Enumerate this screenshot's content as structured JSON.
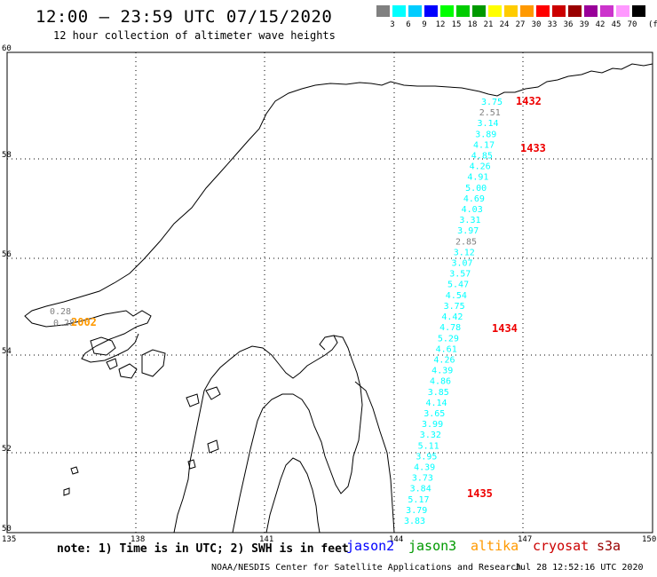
{
  "header": {
    "title": "12:00 – 23:59 UTC 07/15/2020",
    "subtitle": "12 hour collection of altimeter wave heights"
  },
  "scale": {
    "colors": [
      "#808080",
      "#00ffff",
      "#00ccff",
      "#0000ff",
      "#00ff00",
      "#00cc00",
      "#009900",
      "#ffff00",
      "#ffcc00",
      "#ff9900",
      "#ff0000",
      "#cc0000",
      "#990000",
      "#990099",
      "#cc33cc",
      "#ff99ff",
      "#000000"
    ],
    "labels": [
      "3",
      "6",
      "9",
      "12",
      "15",
      "18",
      "21",
      "24",
      "27",
      "30",
      "33",
      "36",
      "39",
      "42",
      "45",
      "70"
    ],
    "unit": "(ft)"
  },
  "axes": {
    "x_ticks": [
      "135",
      "138",
      "141",
      "144",
      "147",
      "150"
    ],
    "y_ticks": [
      "60",
      "58",
      "56",
      "54",
      "52",
      "50"
    ]
  },
  "swh_colors": {
    "cyan": "#00ffff",
    "gray": "#808080"
  },
  "swh_track": [
    {
      "v": "3.75",
      "c": "cyan"
    },
    {
      "v": "2.51",
      "c": "gray"
    },
    {
      "v": "3.14",
      "c": "cyan"
    },
    {
      "v": "3.89",
      "c": "cyan"
    },
    {
      "v": "4.17",
      "c": "cyan"
    },
    {
      "v": "4.85",
      "c": "cyan"
    },
    {
      "v": "4.26",
      "c": "cyan"
    },
    {
      "v": "4.91",
      "c": "cyan"
    },
    {
      "v": "5.00",
      "c": "cyan"
    },
    {
      "v": "4.69",
      "c": "cyan"
    },
    {
      "v": "4.03",
      "c": "cyan"
    },
    {
      "v": "3.31",
      "c": "cyan"
    },
    {
      "v": "3.97",
      "c": "cyan"
    },
    {
      "v": "2.85",
      "c": "gray"
    },
    {
      "v": "3.12",
      "c": "cyan"
    },
    {
      "v": "3.07",
      "c": "cyan"
    },
    {
      "v": "3.57",
      "c": "cyan"
    },
    {
      "v": "5.47",
      "c": "cyan"
    },
    {
      "v": "4.54",
      "c": "cyan"
    },
    {
      "v": "3.75",
      "c": "cyan"
    },
    {
      "v": "4.42",
      "c": "cyan"
    },
    {
      "v": "4.78",
      "c": "cyan"
    },
    {
      "v": "5.29",
      "c": "cyan"
    },
    {
      "v": "4.61",
      "c": "cyan"
    },
    {
      "v": "4.26",
      "c": "cyan"
    },
    {
      "v": "4.39",
      "c": "cyan"
    },
    {
      "v": "4.86",
      "c": "cyan"
    },
    {
      "v": "3.85",
      "c": "cyan"
    },
    {
      "v": "4.14",
      "c": "cyan"
    },
    {
      "v": "3.65",
      "c": "cyan"
    },
    {
      "v": "3.99",
      "c": "cyan"
    },
    {
      "v": "3.32",
      "c": "cyan"
    },
    {
      "v": "5.11",
      "c": "cyan"
    },
    {
      "v": "3.95",
      "c": "cyan"
    },
    {
      "v": "4.39",
      "c": "cyan"
    },
    {
      "v": "3.73",
      "c": "cyan"
    },
    {
      "v": "3.84",
      "c": "cyan"
    },
    {
      "v": "5.17",
      "c": "cyan"
    },
    {
      "v": "3.79",
      "c": "cyan"
    },
    {
      "v": "3.83",
      "c": "cyan"
    }
  ],
  "swh_west": [
    {
      "v": "0.28",
      "c": "gray"
    },
    {
      "v": "0.28",
      "c": "gray"
    }
  ],
  "time_labels": [
    {
      "t": "1432",
      "color": "#ee0000"
    },
    {
      "t": "1433",
      "color": "#ee0000"
    },
    {
      "t": "1434",
      "color": "#ee0000"
    },
    {
      "t": "1435",
      "color": "#ee0000"
    },
    {
      "t": "2002",
      "color": "#ff9900"
    }
  ],
  "footer": {
    "note": "note:  1) Time is in UTC;  2) SWH is in feet",
    "satellites": [
      {
        "name": "jason2",
        "color": "#0000ff"
      },
      {
        "name": "jason3",
        "color": "#009900"
      },
      {
        "name": "altika",
        "color": "#ff9900"
      },
      {
        "name": "cryosat",
        "color": "#cc0000"
      },
      {
        "name": "s3a",
        "color": "#990000"
      }
    ],
    "credit": "NOAA/NESDIS Center for Satellite Applications and Research",
    "timestamp": "Jul 28 12:52:16 UTC 2020"
  }
}
